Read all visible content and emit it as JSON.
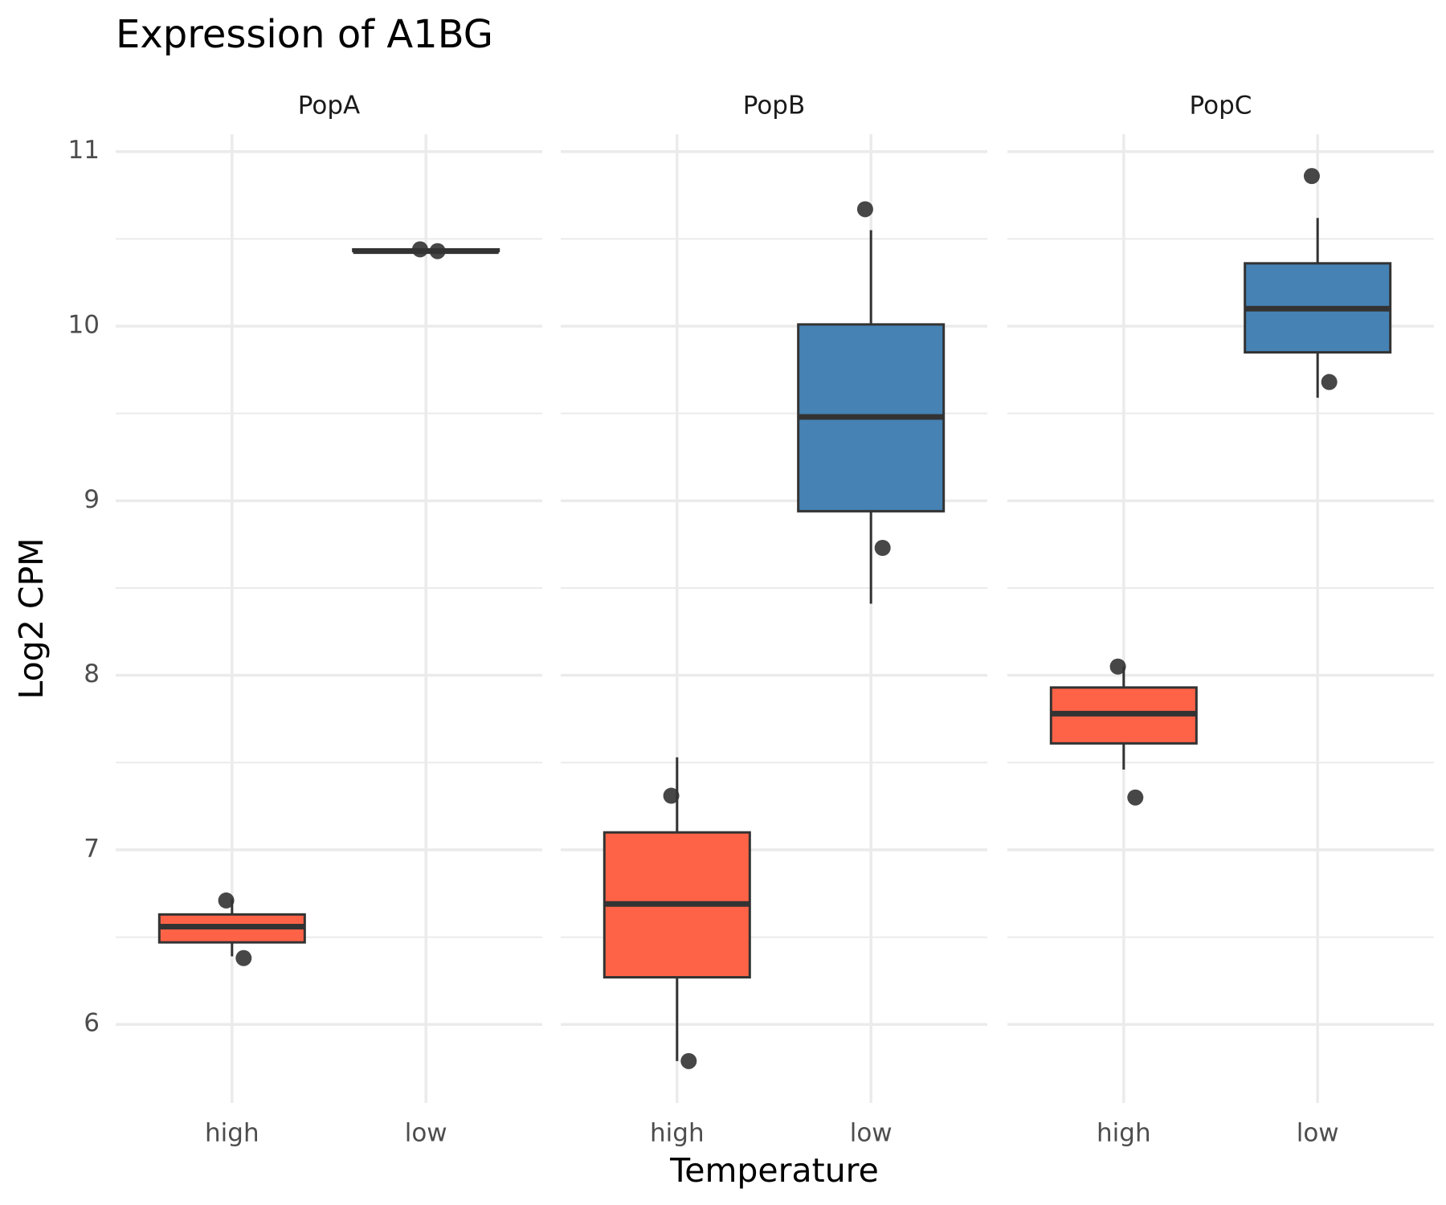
{
  "chart_data": {
    "type": "box",
    "title": "Expression of A1BG",
    "x_label": "Temperature",
    "y_label": "Log2 CPM",
    "ylim": [
      5.55,
      11.1
    ],
    "yticks": [
      6,
      7,
      8,
      9,
      10,
      11
    ],
    "grid": true,
    "panels": [
      {
        "name": "PopA",
        "groups": [
          {
            "category": "high",
            "color": "#ff6347",
            "whisker_low": 6.39,
            "q1": 6.47,
            "median": 6.56,
            "q3": 6.63,
            "whisker_high": 6.72,
            "points": [
              6.71,
              6.38
            ]
          },
          {
            "category": "low",
            "color": "#4682b4",
            "whisker_low": 10.43,
            "q1": 10.43,
            "median": 10.43,
            "q3": 10.44,
            "whisker_high": 10.44,
            "points": [
              10.44,
              10.43
            ]
          }
        ]
      },
      {
        "name": "PopB",
        "groups": [
          {
            "category": "high",
            "color": "#ff6347",
            "whisker_low": 5.79,
            "q1": 6.27,
            "median": 6.69,
            "q3": 7.1,
            "whisker_high": 7.53,
            "points": [
              7.31,
              5.79
            ]
          },
          {
            "category": "low",
            "color": "#4682b4",
            "whisker_low": 8.41,
            "q1": 8.94,
            "median": 9.48,
            "q3": 10.01,
            "whisker_high": 10.55,
            "points": [
              10.67,
              8.73
            ]
          }
        ]
      },
      {
        "name": "PopC",
        "groups": [
          {
            "category": "high",
            "color": "#ff6347",
            "whisker_low": 7.46,
            "q1": 7.61,
            "median": 7.78,
            "q3": 7.93,
            "whisker_high": 8.05,
            "points": [
              8.05,
              7.3
            ]
          },
          {
            "category": "low",
            "color": "#4682b4",
            "whisker_low": 9.59,
            "q1": 9.85,
            "median": 10.1,
            "q3": 10.36,
            "whisker_high": 10.62,
            "points": [
              10.86,
              9.68
            ]
          }
        ]
      }
    ]
  }
}
